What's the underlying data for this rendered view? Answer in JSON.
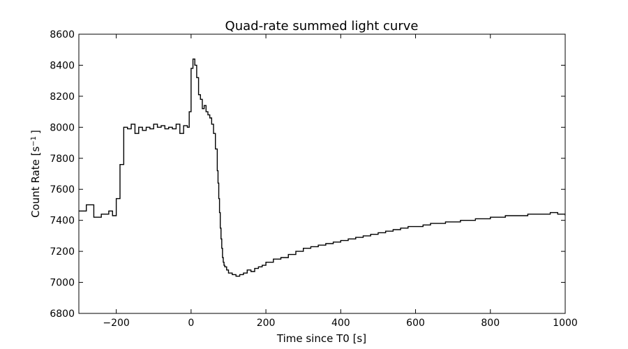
{
  "chart_data": {
    "type": "line",
    "title": "Quad-rate summed light curve",
    "xlabel": "Time since T0 [s]",
    "ylabel": "Count Rate [s",
    "ylabel_exponent": "−1",
    "ylabel_suffix": "]",
    "xlim": [
      -300,
      1000
    ],
    "ylim": [
      6800,
      8600
    ],
    "grid": false,
    "legend": "none",
    "line_color": "#000000",
    "step": true,
    "x_ticks": [
      -200,
      0,
      200,
      400,
      600,
      800,
      1000
    ],
    "x_tick_labels": [
      "−200",
      "0",
      "200",
      "400",
      "600",
      "800",
      "1000"
    ],
    "y_ticks": [
      6800,
      7000,
      7200,
      7400,
      7600,
      7800,
      8000,
      8200,
      8400,
      8600
    ],
    "y_tick_labels": [
      "6800",
      "7000",
      "7200",
      "7400",
      "7600",
      "7800",
      "8000",
      "8200",
      "8400",
      "8600"
    ],
    "series": [
      {
        "x": [
          -300,
          -280,
          -260,
          -240,
          -220,
          -210,
          -200,
          -190,
          -180,
          -170,
          -160,
          -150,
          -140,
          -130,
          -120,
          -110,
          -100,
          -90,
          -80,
          -70,
          -60,
          -50,
          -40,
          -30,
          -20,
          -10,
          -5,
          0,
          5,
          10,
          15,
          20,
          25,
          30,
          35,
          40,
          45,
          50,
          55,
          60,
          65,
          70,
          72,
          74,
          76,
          78,
          80,
          82,
          84,
          86,
          88,
          90,
          95,
          100,
          110,
          120,
          130,
          140,
          150,
          160,
          170,
          180,
          190,
          200,
          220,
          240,
          260,
          280,
          300,
          320,
          340,
          360,
          380,
          400,
          420,
          440,
          460,
          480,
          500,
          520,
          540,
          560,
          580,
          600,
          620,
          640,
          660,
          680,
          700,
          720,
          740,
          760,
          780,
          800,
          820,
          840,
          860,
          880,
          900,
          920,
          940,
          960,
          980,
          1000
        ],
        "y": [
          7460,
          7500,
          7420,
          7440,
          7460,
          7430,
          7540,
          7760,
          8000,
          7990,
          8020,
          7960,
          8000,
          7980,
          8000,
          7990,
          8020,
          8000,
          8010,
          7990,
          8000,
          7990,
          8020,
          7960,
          8010,
          8000,
          8100,
          8380,
          8440,
          8400,
          8320,
          8210,
          8180,
          8120,
          8140,
          8100,
          8080,
          8060,
          8020,
          7960,
          7860,
          7720,
          7640,
          7540,
          7450,
          7350,
          7280,
          7220,
          7160,
          7130,
          7110,
          7100,
          7080,
          7060,
          7050,
          7040,
          7050,
          7060,
          7080,
          7070,
          7090,
          7100,
          7110,
          7130,
          7150,
          7160,
          7180,
          7200,
          7220,
          7230,
          7240,
          7250,
          7260,
          7270,
          7280,
          7290,
          7300,
          7310,
          7320,
          7330,
          7340,
          7350,
          7360,
          7360,
          7370,
          7380,
          7380,
          7390,
          7390,
          7400,
          7400,
          7410,
          7410,
          7420,
          7420,
          7430,
          7430,
          7430,
          7440,
          7440,
          7440,
          7450,
          7440,
          7430
        ]
      }
    ]
  }
}
